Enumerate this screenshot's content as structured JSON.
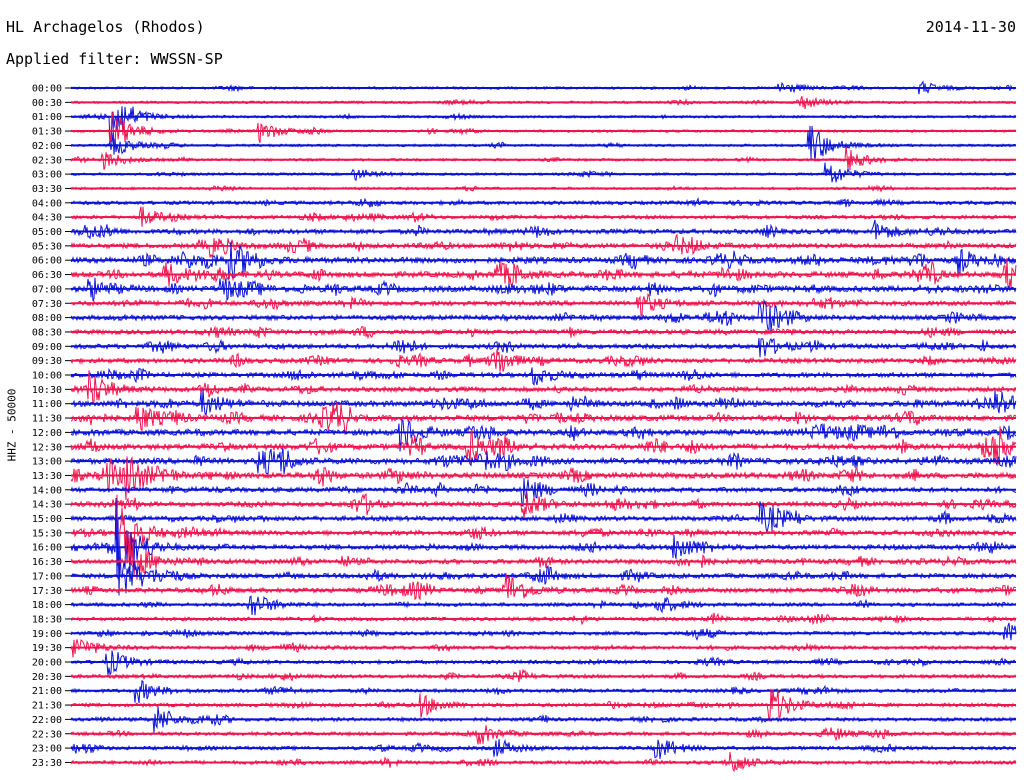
{
  "header": {
    "station": "HL Archagelos (Rhodos)",
    "date": "2014-11-30",
    "filter": "Applied filter: WWSSN-SP"
  },
  "colors": {
    "blue": "#0b12d6",
    "red": "#f0144e",
    "background": "#ffffff",
    "axis": "#000000"
  },
  "chart_data": {
    "type": "line",
    "title": "HL Archagelos (Rhodos)",
    "ylabel": "HHZ - 50000",
    "xlabel": "",
    "grid": false,
    "legend": "none",
    "row_labels": [
      "00:00",
      "00:30",
      "01:00",
      "01:30",
      "02:00",
      "02:30",
      "03:00",
      "03:30",
      "04:00",
      "04:30",
      "05:00",
      "05:30",
      "06:00",
      "06:30",
      "07:00",
      "07:30",
      "08:00",
      "08:30",
      "09:00",
      "09:30",
      "10:00",
      "10:30",
      "11:00",
      "11:30",
      "12:00",
      "12:30",
      "13:00",
      "13:30",
      "14:00",
      "14:30",
      "15:00",
      "15:30",
      "16:00",
      "16:30",
      "17:00",
      "17:30",
      "18:00",
      "18:30",
      "19:00",
      "19:30",
      "20:00",
      "20:30",
      "21:00",
      "21:30",
      "22:00",
      "22:30",
      "23:00",
      "23:30"
    ],
    "row_colors": [
      "blue",
      "red"
    ],
    "row_activity": [
      1,
      1,
      1,
      1,
      1,
      1,
      1,
      1,
      2,
      2,
      3,
      3,
      4,
      4,
      4,
      3,
      3,
      3,
      3,
      3,
      3,
      3,
      4,
      4,
      4,
      4,
      4,
      4,
      3,
      3,
      3,
      3,
      3,
      3,
      3,
      3,
      2,
      2,
      2,
      2,
      2,
      2,
      2,
      2,
      2,
      2,
      2,
      2
    ],
    "events": [
      {
        "row": 0,
        "time_fraction": 0.75,
        "amplitude": 0.6
      },
      {
        "row": 0,
        "time_fraction": 0.9,
        "amplitude": 0.5
      },
      {
        "row": 1,
        "time_fraction": 0.77,
        "amplitude": 0.7
      },
      {
        "row": 2,
        "time_fraction": 0.044,
        "amplitude": 2.5
      },
      {
        "row": 3,
        "time_fraction": 0.044,
        "amplitude": 1.8
      },
      {
        "row": 3,
        "time_fraction": 0.2,
        "amplitude": 0.9
      },
      {
        "row": 4,
        "time_fraction": 0.78,
        "amplitude": 2.2
      },
      {
        "row": 4,
        "time_fraction": 0.044,
        "amplitude": 1.0
      },
      {
        "row": 5,
        "time_fraction": 0.035,
        "amplitude": 0.8
      },
      {
        "row": 5,
        "time_fraction": 0.82,
        "amplitude": 1.1
      },
      {
        "row": 6,
        "time_fraction": 0.3,
        "amplitude": 0.5
      },
      {
        "row": 6,
        "time_fraction": 0.8,
        "amplitude": 1.2
      },
      {
        "row": 9,
        "time_fraction": 0.075,
        "amplitude": 0.8
      },
      {
        "row": 10,
        "time_fraction": 0.85,
        "amplitude": 0.9
      },
      {
        "row": 11,
        "time_fraction": 0.15,
        "amplitude": 0.8
      },
      {
        "row": 11,
        "time_fraction": 0.64,
        "amplitude": 0.8
      },
      {
        "row": 12,
        "time_fraction": 0.17,
        "amplitude": 1.4
      },
      {
        "row": 12,
        "time_fraction": 0.94,
        "amplitude": 0.9
      },
      {
        "row": 13,
        "time_fraction": 0.1,
        "amplitude": 1.0
      },
      {
        "row": 13,
        "time_fraction": 0.45,
        "amplitude": 1.0
      },
      {
        "row": 13,
        "time_fraction": 0.99,
        "amplitude": 1.0
      },
      {
        "row": 14,
        "time_fraction": 0.02,
        "amplitude": 1.0
      },
      {
        "row": 14,
        "time_fraction": 0.16,
        "amplitude": 1.0
      },
      {
        "row": 15,
        "time_fraction": 0.6,
        "amplitude": 1.1
      },
      {
        "row": 16,
        "time_fraction": 0.73,
        "amplitude": 1.8
      },
      {
        "row": 18,
        "time_fraction": 0.73,
        "amplitude": 1.0
      },
      {
        "row": 19,
        "time_fraction": 0.45,
        "amplitude": 0.9
      },
      {
        "row": 20,
        "time_fraction": 0.49,
        "amplitude": 0.9
      },
      {
        "row": 21,
        "time_fraction": 0.02,
        "amplitude": 1.6
      },
      {
        "row": 22,
        "time_fraction": 0.14,
        "amplitude": 1.0
      },
      {
        "row": 22,
        "time_fraction": 0.98,
        "amplitude": 1.0
      },
      {
        "row": 23,
        "time_fraction": 0.07,
        "amplitude": 1.3
      },
      {
        "row": 24,
        "time_fraction": 0.35,
        "amplitude": 1.4
      },
      {
        "row": 25,
        "time_fraction": 0.42,
        "amplitude": 1.6
      },
      {
        "row": 26,
        "time_fraction": 0.2,
        "amplitude": 1.0
      },
      {
        "row": 27,
        "time_fraction": 0.06,
        "amplitude": 2.0
      },
      {
        "row": 28,
        "time_fraction": 0.48,
        "amplitude": 1.2
      },
      {
        "row": 29,
        "time_fraction": 0.48,
        "amplitude": 1.2
      },
      {
        "row": 30,
        "time_fraction": 0.73,
        "amplitude": 1.2
      },
      {
        "row": 31,
        "time_fraction": 0.05,
        "amplitude": 3.2
      },
      {
        "row": 32,
        "time_fraction": 0.05,
        "amplitude": 3.8
      },
      {
        "row": 32,
        "time_fraction": 0.64,
        "amplitude": 1.2
      },
      {
        "row": 33,
        "time_fraction": 0.06,
        "amplitude": 2.4
      },
      {
        "row": 34,
        "time_fraction": 0.06,
        "amplitude": 1.6
      },
      {
        "row": 35,
        "time_fraction": 0.46,
        "amplitude": 1.6
      },
      {
        "row": 36,
        "time_fraction": 0.19,
        "amplitude": 1.2
      },
      {
        "row": 36,
        "time_fraction": 0.62,
        "amplitude": 0.9
      },
      {
        "row": 38,
        "time_fraction": 0.99,
        "amplitude": 0.9
      },
      {
        "row": 39,
        "time_fraction": 0.005,
        "amplitude": 1.0
      },
      {
        "row": 40,
        "time_fraction": 0.04,
        "amplitude": 1.0
      },
      {
        "row": 42,
        "time_fraction": 0.07,
        "amplitude": 1.0
      },
      {
        "row": 43,
        "time_fraction": 0.37,
        "amplitude": 1.0
      },
      {
        "row": 43,
        "time_fraction": 0.74,
        "amplitude": 1.8
      },
      {
        "row": 44,
        "time_fraction": 0.09,
        "amplitude": 0.9
      },
      {
        "row": 45,
        "time_fraction": 0.43,
        "amplitude": 1.0
      },
      {
        "row": 46,
        "time_fraction": 0.45,
        "amplitude": 0.8
      },
      {
        "row": 46,
        "time_fraction": 0.62,
        "amplitude": 0.8
      },
      {
        "row": 47,
        "time_fraction": 0.7,
        "amplitude": 0.7
      }
    ]
  }
}
